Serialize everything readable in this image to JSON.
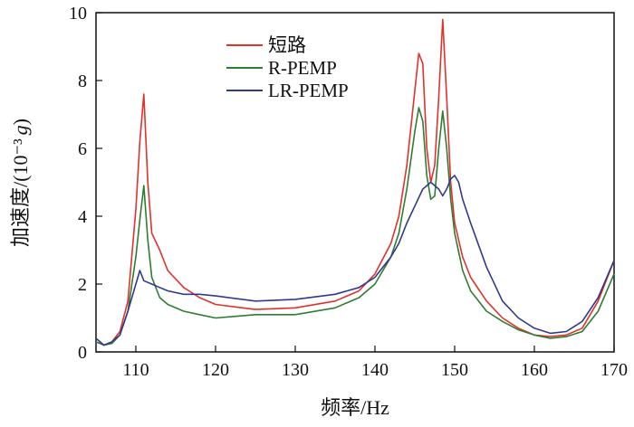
{
  "chart_data": {
    "type": "line",
    "title": "",
    "xlabel": "频率/Hz",
    "ylabel": "加速度/(10⁻³",
    "ylabel_italic": "g",
    "ylabel_close": ")",
    "xlim": [
      105,
      170
    ],
    "ylim": [
      0,
      10
    ],
    "xticks": [
      110,
      120,
      130,
      140,
      150,
      160,
      170
    ],
    "yticks": [
      0,
      2,
      4,
      6,
      8,
      10
    ],
    "legend_position": "top-center",
    "grid": false,
    "series": [
      {
        "name": "短路",
        "color": "#e0322c",
        "x": [
          105,
          106,
          107,
          108,
          109,
          110,
          110.5,
          111,
          111.5,
          112,
          113,
          114,
          116,
          118,
          120,
          125,
          130,
          135,
          138,
          140,
          142,
          143,
          144,
          145,
          145.5,
          146,
          146.5,
          147,
          147.5,
          148,
          148.5,
          149,
          149.5,
          150,
          151,
          152,
          154,
          156,
          158,
          160,
          162,
          164,
          166,
          168,
          170
        ],
        "y": [
          0.3,
          0.2,
          0.3,
          0.6,
          1.5,
          4.2,
          6.2,
          7.6,
          5.0,
          3.5,
          3.0,
          2.4,
          1.9,
          1.6,
          1.4,
          1.25,
          1.3,
          1.5,
          1.8,
          2.3,
          3.2,
          4.0,
          5.5,
          7.7,
          8.8,
          8.5,
          6.0,
          5.0,
          5.5,
          7.5,
          9.8,
          7.5,
          5.0,
          3.8,
          2.8,
          2.2,
          1.5,
          1.0,
          0.7,
          0.5,
          0.45,
          0.5,
          0.7,
          1.5,
          2.7
        ]
      },
      {
        "name": "R-PEMP",
        "color": "#2e7d32",
        "x": [
          105,
          106,
          107,
          108,
          109,
          110,
          110.5,
          111,
          111.5,
          112,
          113,
          114,
          116,
          118,
          120,
          125,
          130,
          135,
          138,
          140,
          142,
          143,
          144,
          145,
          145.5,
          146,
          146.5,
          147,
          147.5,
          148,
          148.5,
          149,
          149.5,
          150,
          151,
          152,
          154,
          156,
          158,
          160,
          162,
          164,
          166,
          168,
          170
        ],
        "y": [
          0.3,
          0.2,
          0.25,
          0.5,
          1.2,
          2.8,
          3.9,
          4.9,
          3.3,
          2.2,
          1.6,
          1.4,
          1.2,
          1.1,
          1.0,
          1.1,
          1.1,
          1.3,
          1.6,
          2.0,
          2.8,
          3.5,
          4.8,
          6.5,
          7.2,
          6.8,
          5.2,
          4.5,
          4.6,
          6.0,
          7.1,
          6.0,
          4.5,
          3.5,
          2.4,
          1.8,
          1.2,
          0.9,
          0.65,
          0.5,
          0.4,
          0.45,
          0.6,
          1.2,
          2.3
        ]
      },
      {
        "name": "LR-PEMP",
        "color": "#303a8c",
        "x": [
          105,
          106,
          107,
          108,
          109,
          110,
          110.5,
          111,
          112,
          113,
          114,
          116,
          118,
          120,
          125,
          130,
          135,
          138,
          140,
          142,
          143,
          144,
          145,
          146,
          147,
          148,
          148.5,
          149,
          149.5,
          150,
          150.5,
          151,
          152,
          154,
          156,
          158,
          160,
          162,
          164,
          166,
          168,
          170
        ],
        "y": [
          0.4,
          0.2,
          0.3,
          0.5,
          1.2,
          2.0,
          2.4,
          2.1,
          2.0,
          1.9,
          1.8,
          1.7,
          1.7,
          1.65,
          1.5,
          1.55,
          1.7,
          1.9,
          2.2,
          2.8,
          3.2,
          3.8,
          4.3,
          4.8,
          5.0,
          4.8,
          4.6,
          4.8,
          5.1,
          5.2,
          5.0,
          4.5,
          3.8,
          2.5,
          1.5,
          1.0,
          0.7,
          0.55,
          0.6,
          0.9,
          1.6,
          2.7
        ]
      }
    ]
  }
}
